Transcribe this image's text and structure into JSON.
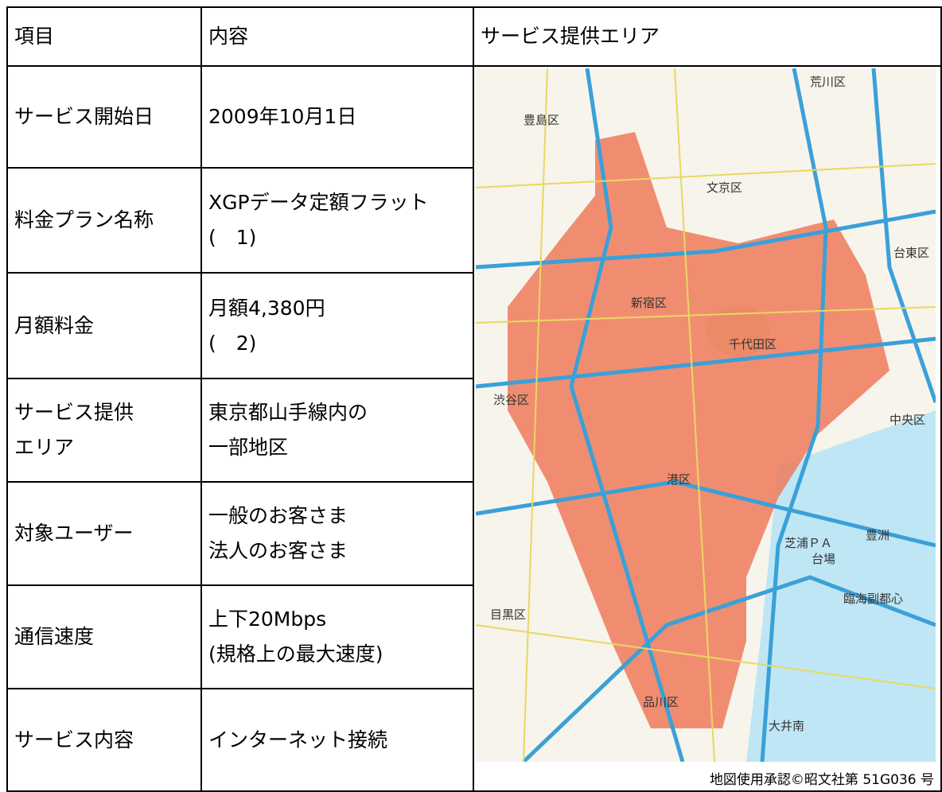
{
  "table": {
    "header": [
      "項目",
      "内容",
      "サービス提供エリア"
    ],
    "rows": [
      {
        "label": [
          "サービス開始日"
        ],
        "content": [
          "2009年10月1日"
        ]
      },
      {
        "label": [
          "料金プラン名称"
        ],
        "content": [
          "XGPデータ定額フラット",
          "(　1)"
        ]
      },
      {
        "label": [
          "月額料金"
        ],
        "content": [
          "月額4,380円",
          "(　2)"
        ]
      },
      {
        "label": [
          "サービス提供",
          "エリア"
        ],
        "content": [
          "東京都山手線内の",
          "一部地区"
        ]
      },
      {
        "label": [
          "対象ユーザー"
        ],
        "content": [
          "一般のお客さま",
          "法人のお客さま"
        ]
      },
      {
        "label": [
          "通信速度"
        ],
        "content": [
          "上下20Mbps",
          "(規格上の最大速度)"
        ]
      },
      {
        "label": [
          "サービス内容"
        ],
        "content": [
          "インターネット接続"
        ]
      }
    ]
  },
  "map": {
    "labels": [
      "豊島区",
      "荒川区",
      "文京区",
      "台東区",
      "新宿区",
      "千代田区",
      "渋谷区",
      "中央区",
      "港区",
      "目黒区",
      "品川区",
      "豊洲",
      "芝浦ＰＡ",
      "台場",
      "臨海副都心",
      "大井南"
    ],
    "caption": "地図使用承認©昭文社第 51G036 号"
  }
}
